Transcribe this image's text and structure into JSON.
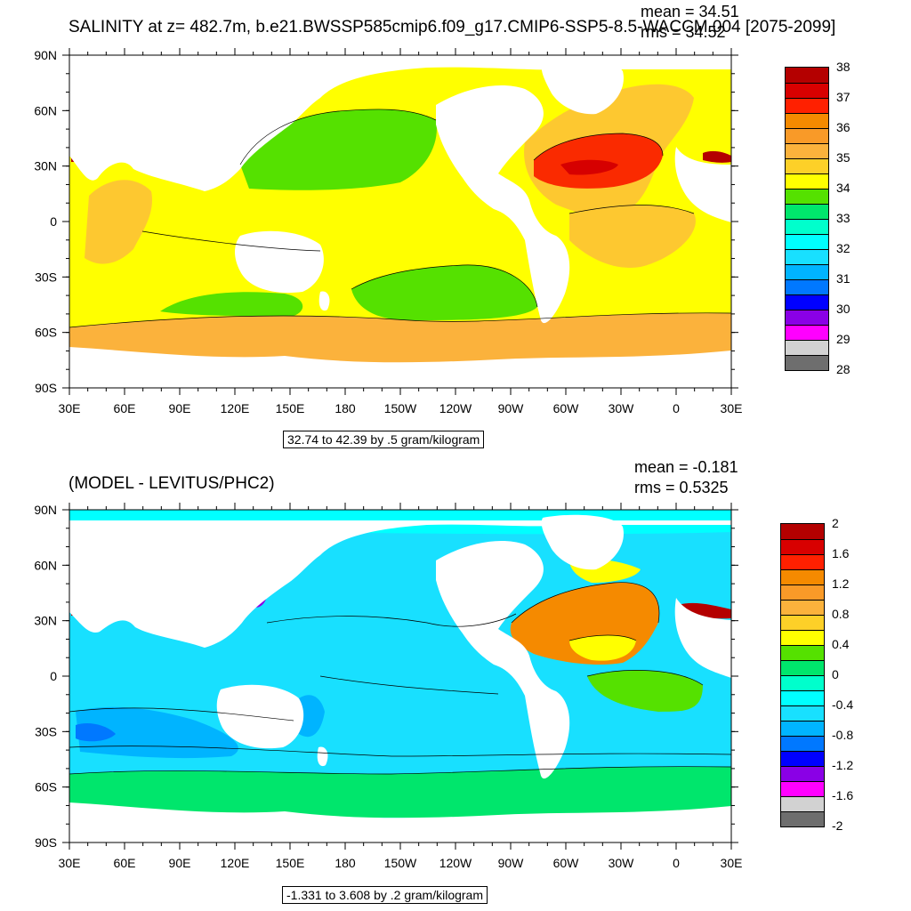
{
  "panel_top": {
    "title": "SALINITY at z= 482.7m, b.e21.BWSSP585cmip6.f09_g17.CMIP6-SSP5-8.5-WACCM.004 [2075-2099]",
    "mean": "mean = 34.51",
    "rms": "rms = 34.52",
    "info": "32.74 to 42.39 by .5 gram/kilogram",
    "legend_labels": [
      "38",
      "37",
      "36",
      "35",
      "34",
      "33",
      "32",
      "31",
      "30",
      "29",
      "28"
    ],
    "legend_colors": [
      "#b40000",
      "#d80000",
      "#ff2000",
      "#f58a00",
      "#f99a28",
      "#fbb23c",
      "#fdd028",
      "#ffff00",
      "#55e100",
      "#00e66c",
      "#00ffcc",
      "#00ffff",
      "#18e0ff",
      "#00b4ff",
      "#0078ff",
      "#0000ff",
      "#8a00e6",
      "#ff00ff",
      "#d2d2d2",
      "#6e6e6e"
    ],
    "colors": {
      "ocean_main": "#ffff00",
      "ocean_orange": "#fdc830",
      "north_atlantic": "#fa2a00",
      "atlantic_core": "#d60000",
      "north_pacific": "#55e100",
      "southern_band": "#fbb23c",
      "mediterranean": "#b40000",
      "land": "#ffffff"
    }
  },
  "panel_bottom": {
    "title": "(MODEL - LEVITUS/PHC2)",
    "mean": "mean = -0.181",
    "rms": "rms = 0.5325",
    "info": "-1.331 to 3.608 by .2 gram/kilogram",
    "legend_labels": [
      "2",
      "1.6",
      "1.2",
      "0.8",
      "0.4",
      "0",
      "-0.4",
      "-0.8",
      "-1.2",
      "-1.6",
      "-2"
    ],
    "legend_colors": [
      "#b40000",
      "#d80000",
      "#ff2000",
      "#f58a00",
      "#f99a28",
      "#fbb23c",
      "#fdd028",
      "#ffff00",
      "#55e100",
      "#00e66c",
      "#00ffcc",
      "#00ffff",
      "#18e0ff",
      "#00b4ff",
      "#0078ff",
      "#0000ff",
      "#8a00e6",
      "#ff00ff",
      "#d2d2d2",
      "#6e6e6e"
    ],
    "colors": {
      "ocean_main": "#18e0ff",
      "arctic": "#00ffff",
      "indian_blue": "#00b4ff",
      "indian_core": "#0078ff",
      "southern_green": "#00e66c",
      "north_atlantic": "#f58a00",
      "atlantic_yellow": "#ffff00",
      "atlantic_green": "#55e100",
      "mediterranean": "#b40000",
      "sea_of_japan": "#8a00e6",
      "land": "#ffffff"
    }
  },
  "axes": {
    "lat_labels": [
      "90N",
      "60N",
      "30N",
      "0",
      "30S",
      "60S",
      "90S"
    ],
    "lon_labels": [
      "30E",
      "60E",
      "90E",
      "120E",
      "150E",
      "180",
      "150W",
      "120W",
      "90W",
      "60W",
      "30W",
      "0",
      "30E"
    ]
  }
}
